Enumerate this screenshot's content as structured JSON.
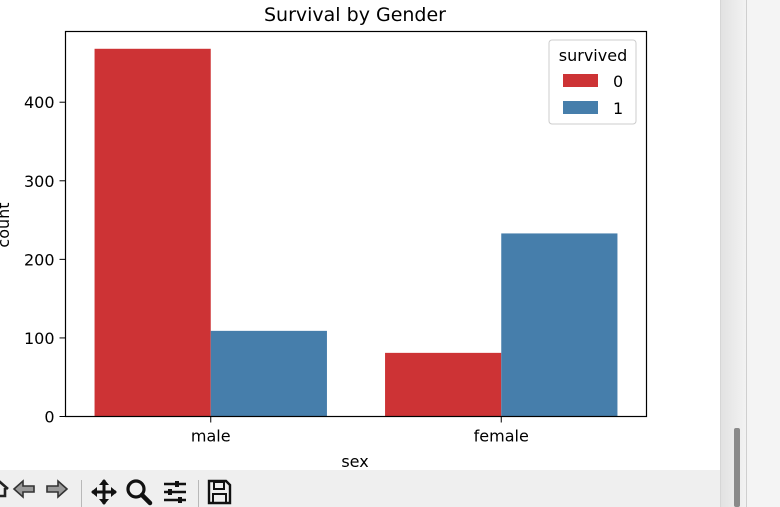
{
  "chart_data": {
    "type": "bar",
    "title": "Survival by Gender",
    "xlabel": "sex",
    "ylabel": "count",
    "categories": [
      "male",
      "female"
    ],
    "series": [
      {
        "name": "0",
        "values": [
          468,
          81
        ],
        "color": "#cd3335"
      },
      {
        "name": "1",
        "values": [
          109,
          233
        ],
        "color": "#467eab"
      }
    ],
    "ylim": [
      0,
      490
    ],
    "yticks": [
      0,
      100,
      200,
      300,
      400
    ],
    "legend": {
      "title": "survived",
      "placement": "top-right"
    },
    "grid": false
  },
  "toolbar": {
    "icons": [
      "home-icon",
      "back-arrow-icon",
      "forward-arrow-icon",
      "pan-icon",
      "zoom-icon",
      "configure-subplots-icon",
      "save-icon"
    ]
  }
}
